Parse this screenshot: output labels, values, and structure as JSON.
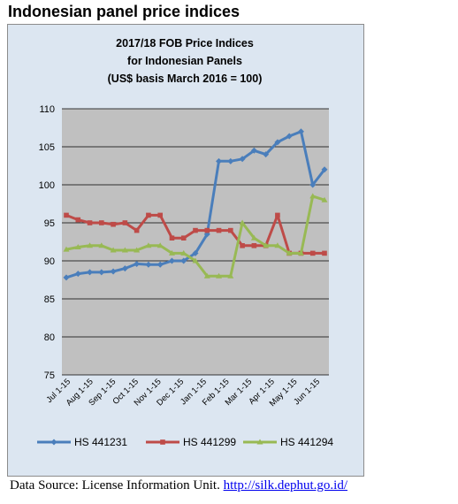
{
  "page_title": "Indonesian panel price indices",
  "source": {
    "prefix": "Data Source: License Information Unit.",
    "link_text": "http://silk.dephut.go.id/"
  },
  "colors": {
    "frame_background": "#dce6f1",
    "frame_border": "#8c8c8c",
    "plot_background": "#c0c0c0",
    "gridline": "#000000"
  },
  "chart_data": {
    "type": "line",
    "title_lines": [
      "2017/18 FOB Price Indices",
      "for Indonesian Panels",
      "(US$ basis March 2016 = 100)"
    ],
    "xlabel": "",
    "ylabel": "",
    "ylim": [
      75,
      110
    ],
    "yticks": [
      75,
      80,
      85,
      90,
      95,
      100,
      105,
      110
    ],
    "grid": "horizontal",
    "legend_position": "bottom",
    "x_tick_labels": [
      "Jul 1-15",
      "Aug 1-15",
      "Sep 1-15",
      "Oct 1-15",
      "Nov 1-15",
      "Dec 1-15",
      "Jan 1-15",
      "Feb 1-15",
      "Mar 1-15",
      "Apr 1-15",
      "May 1-15",
      "Jun 1-15"
    ],
    "series": [
      {
        "name": "HS 441231",
        "color": "#4a7ebb",
        "marker": "diamond",
        "values": [
          87.8,
          88.3,
          88.5,
          88.5,
          88.6,
          89.0,
          89.6,
          89.5,
          89.5,
          90.0,
          90.0,
          91.0,
          93.5,
          103.1,
          103.1,
          103.4,
          104.5,
          104.0,
          105.6,
          106.4,
          107.0,
          100.0,
          102.0
        ]
      },
      {
        "name": "HS 441299",
        "color": "#be4b48",
        "marker": "square",
        "values": [
          96.0,
          95.4,
          95.0,
          95.0,
          94.8,
          95.0,
          94.0,
          96.0,
          96.0,
          93.0,
          93.0,
          94.0,
          94.0,
          94.0,
          94.0,
          92.0,
          92.0,
          92.0,
          96.0,
          91.0,
          91.0,
          91.0,
          91.0
        ]
      },
      {
        "name": "HS 441294",
        "color": "#98b954",
        "marker": "triangle",
        "values": [
          91.5,
          91.8,
          92.0,
          92.0,
          91.4,
          91.4,
          91.4,
          92.0,
          92.0,
          91.0,
          91.0,
          90.0,
          88.0,
          88.0,
          88.0,
          95.0,
          93.0,
          92.0,
          92.0,
          91.0,
          91.0,
          98.5,
          98.0
        ]
      }
    ]
  }
}
